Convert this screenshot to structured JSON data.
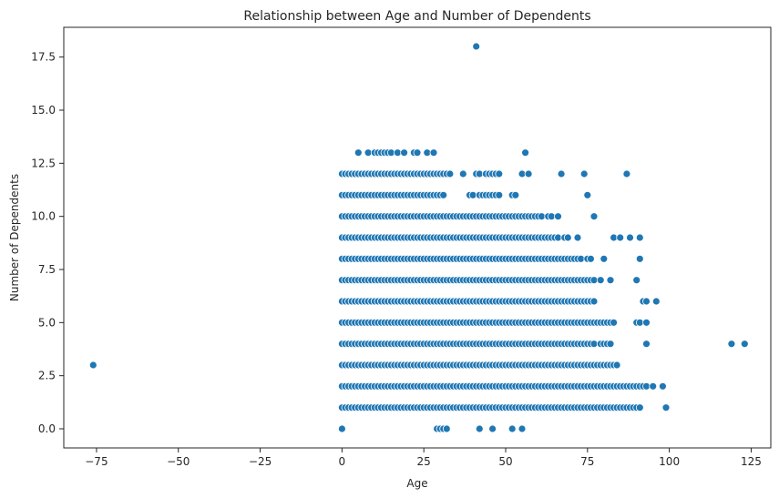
{
  "chart_data": {
    "type": "scatter",
    "title": "Relationship between Age and Number of Dependents",
    "xlabel": "Age",
    "ylabel": "Number of Dependents",
    "xlim": [
      -85,
      131
    ],
    "ylim": [
      -0.9,
      18.9
    ],
    "xticks": [
      -75,
      -50,
      -25,
      0,
      25,
      50,
      75,
      100,
      125
    ],
    "yticks": [
      0.0,
      2.5,
      5.0,
      7.5,
      10.0,
      12.5,
      15.0,
      17.5
    ],
    "xtick_labels": [
      "−75",
      "−50",
      "−25",
      "0",
      "25",
      "50",
      "75",
      "100",
      "125"
    ],
    "ytick_labels": [
      "0.0",
      "2.5",
      "5.0",
      "7.5",
      "10.0",
      "12.5",
      "15.0",
      "17.5"
    ],
    "grid": false,
    "marker_color": "#1f77b4",
    "marker_edge": "#ffffff",
    "bands": [
      {
        "y": 1,
        "x_range": [
          0,
          91
        ],
        "step": 1
      },
      {
        "y": 2,
        "x_range": [
          0,
          90
        ],
        "step": 1
      },
      {
        "y": 3,
        "x_range": [
          0,
          83
        ],
        "step": 1
      },
      {
        "y": 4,
        "x_range": [
          0,
          77
        ],
        "step": 1
      },
      {
        "y": 5,
        "x_range": [
          0,
          81
        ],
        "step": 1
      },
      {
        "y": 6,
        "x_range": [
          0,
          74
        ],
        "step": 1
      },
      {
        "y": 7,
        "x_range": [
          0,
          77
        ],
        "step": 1
      },
      {
        "y": 8,
        "x_range": [
          0,
          73
        ],
        "step": 1
      },
      {
        "y": 9,
        "x_range": [
          0,
          66
        ],
        "step": 1
      },
      {
        "y": 10,
        "x_range": [
          0,
          61
        ],
        "step": 1
      },
      {
        "y": 11,
        "x_range": [
          0,
          31
        ],
        "step": 1
      },
      {
        "y": 12,
        "x_range": [
          0,
          33
        ],
        "step": 1
      }
    ],
    "points": [
      [
        -76,
        3
      ],
      [
        41,
        18
      ],
      [
        0,
        0
      ],
      [
        29,
        0
      ],
      [
        30,
        0
      ],
      [
        31,
        0
      ],
      [
        32,
        0
      ],
      [
        42,
        0
      ],
      [
        46,
        0
      ],
      [
        52,
        0
      ],
      [
        55,
        0
      ],
      [
        5,
        13
      ],
      [
        8,
        13
      ],
      [
        10,
        13
      ],
      [
        11,
        13
      ],
      [
        12,
        13
      ],
      [
        13,
        13
      ],
      [
        14,
        13
      ],
      [
        15,
        13
      ],
      [
        17,
        13
      ],
      [
        19,
        13
      ],
      [
        22,
        13
      ],
      [
        23,
        13
      ],
      [
        26,
        13
      ],
      [
        28,
        13
      ],
      [
        56,
        13
      ],
      [
        37,
        12
      ],
      [
        41,
        12
      ],
      [
        42,
        12
      ],
      [
        44,
        12
      ],
      [
        45,
        12
      ],
      [
        46,
        12
      ],
      [
        47,
        12
      ],
      [
        48,
        12
      ],
      [
        55,
        12
      ],
      [
        57,
        12
      ],
      [
        67,
        12
      ],
      [
        74,
        12
      ],
      [
        87,
        12
      ],
      [
        39,
        11
      ],
      [
        40,
        11
      ],
      [
        42,
        11
      ],
      [
        43,
        11
      ],
      [
        44,
        11
      ],
      [
        45,
        11
      ],
      [
        46,
        11
      ],
      [
        47,
        11
      ],
      [
        48,
        11
      ],
      [
        52,
        11
      ],
      [
        53,
        11
      ],
      [
        75,
        11
      ],
      [
        63,
        10
      ],
      [
        64,
        10
      ],
      [
        66,
        10
      ],
      [
        77,
        10
      ],
      [
        68,
        9
      ],
      [
        69,
        9
      ],
      [
        72,
        9
      ],
      [
        83,
        9
      ],
      [
        85,
        9
      ],
      [
        88,
        9
      ],
      [
        91,
        9
      ],
      [
        75,
        8
      ],
      [
        76,
        8
      ],
      [
        80,
        8
      ],
      [
        91,
        8
      ],
      [
        79,
        7
      ],
      [
        82,
        7
      ],
      [
        90,
        7
      ],
      [
        75,
        6
      ],
      [
        76,
        6
      ],
      [
        77,
        6
      ],
      [
        92,
        6
      ],
      [
        93,
        6
      ],
      [
        96,
        6
      ],
      [
        82,
        5
      ],
      [
        83,
        5
      ],
      [
        90,
        5
      ],
      [
        91,
        5
      ],
      [
        93,
        5
      ],
      [
        79,
        4
      ],
      [
        80,
        4
      ],
      [
        81,
        4
      ],
      [
        82,
        4
      ],
      [
        93,
        4
      ],
      [
        119,
        4
      ],
      [
        123,
        4
      ],
      [
        84,
        3
      ],
      [
        91,
        2
      ],
      [
        92,
        2
      ],
      [
        93,
        2
      ],
      [
        95,
        2
      ],
      [
        98,
        2
      ],
      [
        99,
        1
      ]
    ]
  }
}
